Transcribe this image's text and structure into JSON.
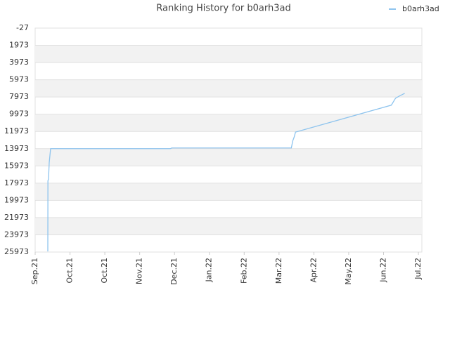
{
  "chart_data": {
    "type": "line",
    "title": "Ranking History for b0arh3ad",
    "x": [
      10.9,
      11.0,
      11.5,
      12.1,
      13.3,
      116.4,
      117.6,
      220.6,
      221.8,
      223.0,
      224.2,
      306.7,
      310.3,
      313.3,
      318.2
    ],
    "series": [
      {
        "name": "b0arh3ad",
        "color": "#8ec4ee",
        "values": [
          25900,
          17700,
          17500,
          15600,
          13973,
          13973,
          13890,
          13890,
          13070,
          12640,
          12050,
          8920,
          8120,
          7880,
          7550
        ]
      }
    ],
    "xlim": [
      0,
      333
    ],
    "xticks": [
      {
        "value": 0,
        "label": "Sep.21"
      },
      {
        "value": 30,
        "label": "Oct.21"
      },
      {
        "value": 60,
        "label": "Oct.21"
      },
      {
        "value": 90,
        "label": "Nov.21"
      },
      {
        "value": 120,
        "label": "Dec.21"
      },
      {
        "value": 150,
        "label": "Jan.22"
      },
      {
        "value": 180,
        "label": "Feb.22"
      },
      {
        "value": 210,
        "label": "Mar.22"
      },
      {
        "value": 240,
        "label": "Apr.22"
      },
      {
        "value": 270,
        "label": "May.22"
      },
      {
        "value": 300,
        "label": "Jun.22"
      },
      {
        "value": 330,
        "label": "Jul.22"
      }
    ],
    "ylim": [
      -27,
      25973
    ],
    "yticks": [
      -27,
      1973,
      3973,
      5973,
      7973,
      9973,
      11973,
      13973,
      15973,
      17973,
      19973,
      21973,
      23973,
      25973
    ],
    "y_inverted": true,
    "grid": true,
    "legend": "top-right"
  }
}
